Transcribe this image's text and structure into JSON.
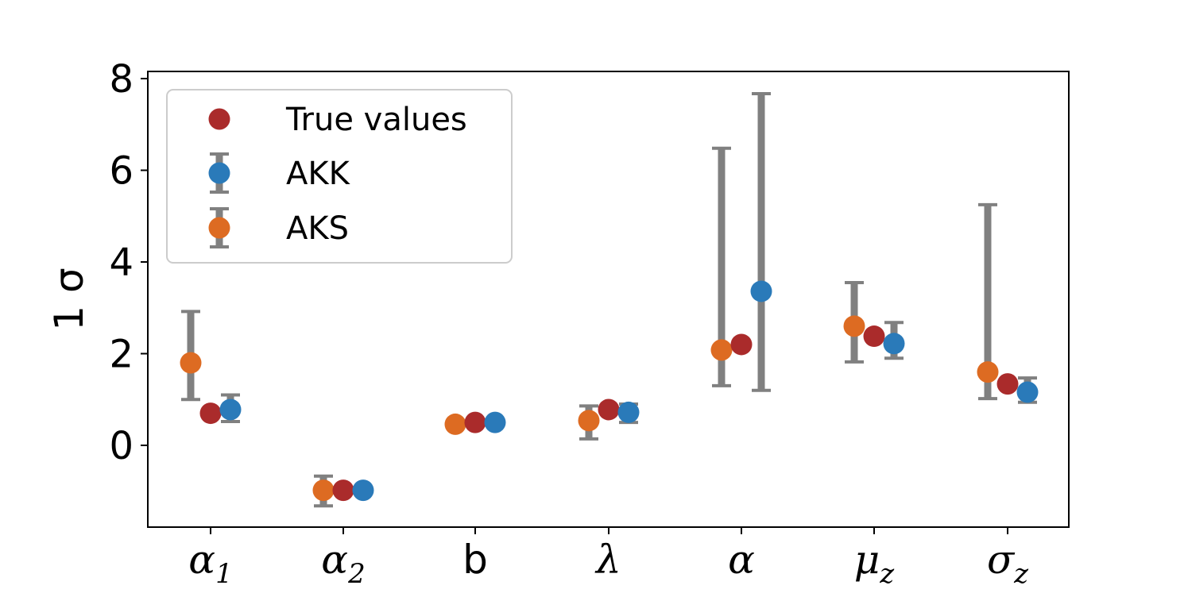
{
  "chart_data": {
    "type": "scatter",
    "title": "",
    "xlabel": "",
    "ylabel": "1 σ",
    "ylim": [
      -1.8,
      8.1
    ],
    "yticks": [
      0,
      2,
      4,
      6,
      8
    ],
    "categories": [
      {
        "base": "α",
        "sub": "1"
      },
      {
        "base": "α",
        "sub": "2"
      },
      {
        "base": "b",
        "sub": ""
      },
      {
        "base": "λ",
        "sub": ""
      },
      {
        "base": "α",
        "sub": ""
      },
      {
        "base": "μ",
        "sub": "z"
      },
      {
        "base": "σ",
        "sub": "z"
      }
    ],
    "series": [
      {
        "name": "AKS",
        "color": "#dd6b22",
        "offset": -1,
        "values": [
          1.8,
          -0.98,
          0.46,
          0.54,
          2.08,
          2.6,
          1.6
        ],
        "err_low": [
          1.0,
          -1.32,
          0.46,
          0.14,
          1.3,
          1.82,
          1.02
        ],
        "err_high": [
          2.92,
          -0.67,
          0.46,
          0.86,
          6.48,
          3.55,
          5.25
        ]
      },
      {
        "name": "True values",
        "color": "#aa2b2b",
        "offset": 0,
        "values": [
          0.7,
          -0.98,
          0.5,
          0.78,
          2.2,
          2.38,
          1.34
        ]
      },
      {
        "name": "AKK",
        "color": "#2a7ab9",
        "offset": 1,
        "values": [
          0.78,
          -0.98,
          0.5,
          0.72,
          3.36,
          2.22,
          1.16
        ],
        "err_low": [
          0.52,
          -0.98,
          0.5,
          0.5,
          1.2,
          1.9,
          0.94
        ],
        "err_high": [
          1.1,
          -0.98,
          0.5,
          0.9,
          7.67,
          2.68,
          1.47
        ]
      }
    ],
    "errorbar_color": "#808080",
    "legend": {
      "placement": "top-left",
      "entries": [
        "True values",
        "AKK",
        "AKS"
      ]
    },
    "grid": false
  }
}
